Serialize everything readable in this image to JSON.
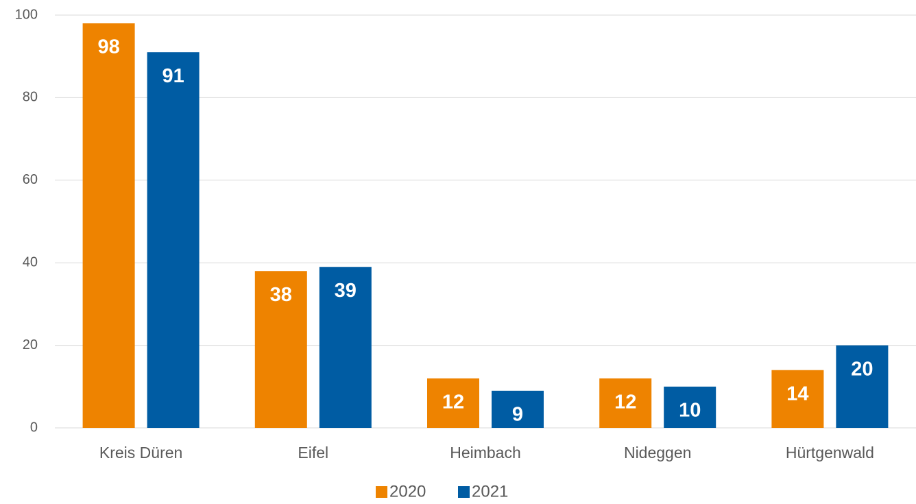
{
  "chart_data": {
    "type": "bar",
    "categories": [
      "Kreis Düren",
      "Eifel",
      "Heimbach",
      "Nideggen",
      "Hürtgenwald"
    ],
    "series": [
      {
        "name": "2020",
        "color": "#ee8300",
        "values": [
          98,
          38,
          12,
          12,
          14
        ]
      },
      {
        "name": "2021",
        "color": "#005ca3",
        "values": [
          91,
          39,
          9,
          10,
          20
        ]
      }
    ],
    "ylim": [
      0,
      100
    ],
    "yticks": [
      0,
      20,
      40,
      60,
      80,
      100
    ],
    "grid": true,
    "legend": "bottom"
  }
}
